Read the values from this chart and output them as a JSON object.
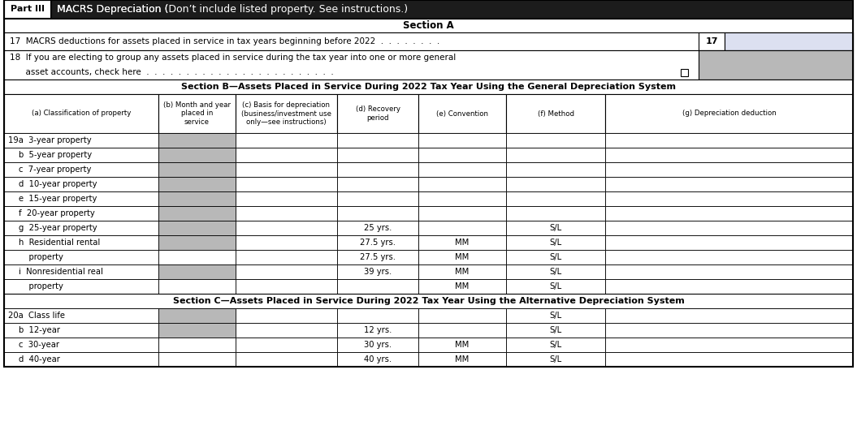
{
  "col_headers": [
    "(a) Classification of property",
    "(b) Month and year\nplaced in\nservice",
    "(c) Basis for depreciation\n(business/investment use\nonly—see instructions)",
    "(d) Recovery\nperiod",
    "(e) Convention",
    "(f) Method",
    "(g) Depreciation deduction"
  ],
  "rows_b": [
    {
      "label": "19a  3-year property",
      "bold_prefix": "19a",
      "b_gray": true,
      "d": "",
      "e": "",
      "f": "",
      "g": ""
    },
    {
      "label": "b  5-year property",
      "bold_prefix": "b",
      "b_gray": true,
      "d": "",
      "e": "",
      "f": "",
      "g": ""
    },
    {
      "label": "c  7-year property",
      "bold_prefix": "c",
      "b_gray": true,
      "d": "",
      "e": "",
      "f": "",
      "g": ""
    },
    {
      "label": "d  10-year property",
      "bold_prefix": "d",
      "b_gray": true,
      "d": "",
      "e": "",
      "f": "",
      "g": ""
    },
    {
      "label": "e  15-year property",
      "bold_prefix": "e",
      "b_gray": true,
      "d": "",
      "e": "",
      "f": "",
      "g": ""
    },
    {
      "label": "f  20-year property",
      "bold_prefix": "f",
      "b_gray": true,
      "d": "",
      "e": "",
      "f": "",
      "g": ""
    },
    {
      "label": "g  25-year property",
      "bold_prefix": "g",
      "b_gray": true,
      "d": "25 yrs.",
      "e": "",
      "f": "S/L",
      "g": ""
    },
    {
      "label": "h  Residential rental",
      "bold_prefix": "h",
      "b_gray": true,
      "d": "27.5 yrs.",
      "e": "MM",
      "f": "S/L",
      "g": ""
    },
    {
      "label": "    property",
      "bold_prefix": "",
      "b_gray": false,
      "d": "27.5 yrs.",
      "e": "MM",
      "f": "S/L",
      "g": ""
    },
    {
      "label": "i  Nonresidential real",
      "bold_prefix": "i",
      "b_gray": true,
      "d": "39 yrs.",
      "e": "MM",
      "f": "S/L",
      "g": ""
    },
    {
      "label": "    property",
      "bold_prefix": "",
      "b_gray": false,
      "d": "",
      "e": "MM",
      "f": "S/L",
      "g": ""
    }
  ],
  "rows_c": [
    {
      "label": "20a  Class life",
      "bold_prefix": "20a",
      "b_gray": true,
      "d": "",
      "e": "",
      "f": "S/L",
      "g": ""
    },
    {
      "label": "b  12-year",
      "bold_prefix": "b",
      "b_gray": true,
      "d": "12 yrs.",
      "e": "",
      "f": "S/L",
      "g": ""
    },
    {
      "label": "c  30-year",
      "bold_prefix": "c",
      "b_gray": false,
      "d": "30 yrs.",
      "e": "MM",
      "f": "S/L",
      "g": ""
    },
    {
      "label": "d  40-year",
      "bold_prefix": "d",
      "b_gray": false,
      "d": "40 yrs.",
      "e": "MM",
      "f": "S/L",
      "g": ""
    }
  ],
  "bg_white": "#ffffff",
  "bg_light_blue": "#eef2ff",
  "gray_col_b": "#b8b8b8",
  "gray_row17_answer": "#d0d0d0",
  "gray_row18": "#b8b8b8"
}
